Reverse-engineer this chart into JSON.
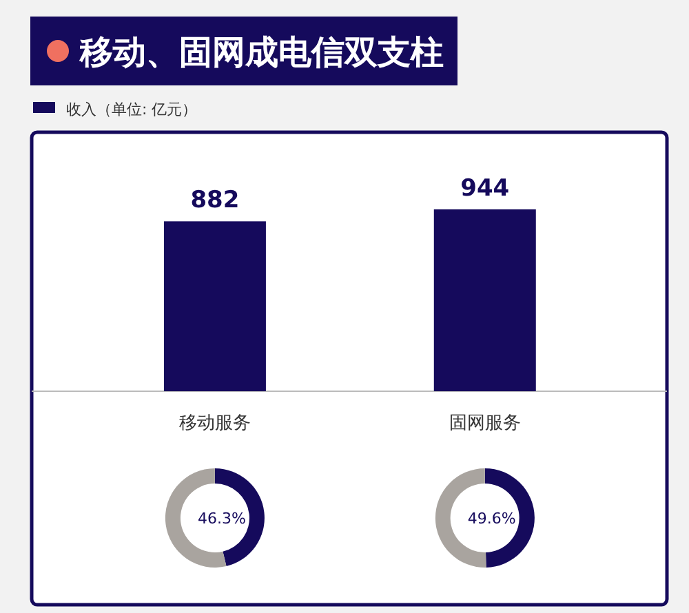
{
  "chart_data": [
    {
      "type": "bar",
      "title": "移动、固网成电信双支柱",
      "categories": [
        "移动服务",
        "固网服务"
      ],
      "series": [
        {
          "name": "收入（单位: 亿元）",
          "color": "#150a5c",
          "values": [
            882,
            944
          ]
        }
      ],
      "data_labels": true,
      "legend": "top left"
    },
    {
      "type": "donut",
      "categories": [
        null,
        null
      ],
      "values": [
        46.3,
        53.7
      ],
      "colors": [
        "#150a5c",
        "#a9a49f"
      ],
      "value_labels": [
        "46.3%",
        null
      ]
    },
    {
      "type": "donut",
      "categories": [
        null,
        null
      ],
      "values": [
        49.6,
        50.4
      ],
      "colors": [
        "#150a5c",
        "#a9a49f"
      ],
      "value_labels": [
        "49.6%",
        null
      ]
    }
  ]
}
